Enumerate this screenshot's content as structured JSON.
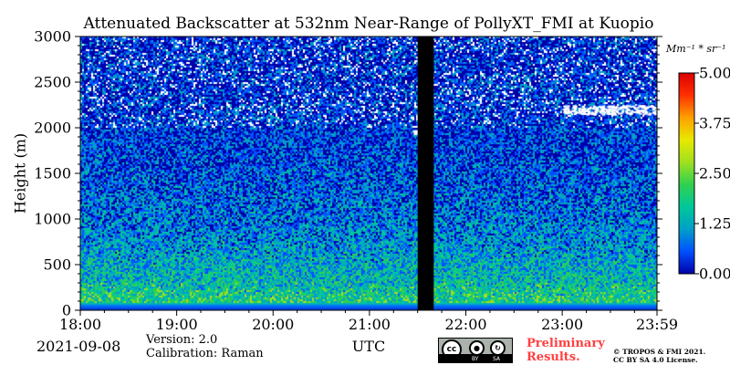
{
  "chart_data": {
    "type": "heatmap",
    "title": "Attenuated Backscatter at 532nm Near-Range of PollyXT_FMI at Kuopio",
    "xlabel": "UTC",
    "ylabel": "Height (m)",
    "x_ticks": [
      "18:00",
      "19:00",
      "20:00",
      "21:00",
      "22:00",
      "23:00",
      "23:59"
    ],
    "y_ticks": [
      "0",
      "500",
      "1000",
      "1500",
      "2000",
      "2500",
      "3000"
    ],
    "xlim": [
      "18:00",
      "23:59"
    ],
    "ylim": [
      0,
      3000
    ],
    "colorbar": {
      "unit": "Mm⁻¹ * sr⁻¹",
      "ticks": [
        "0.00",
        "1.25",
        "2.50",
        "3.75",
        "5.00"
      ],
      "range": [
        0,
        5
      ],
      "colormap": [
        "#0000aa",
        "#0050ff",
        "#00a0c8",
        "#00c89a",
        "#30d050",
        "#a0e020",
        "#e8e800",
        "#ffa000",
        "#ff3000",
        "#dd0000"
      ]
    },
    "no_data_gap": {
      "start": "21:30",
      "end": "21:40",
      "color": "#000000"
    },
    "features": [
      {
        "type": "near-surface layer",
        "height_m": [
          0,
          80
        ],
        "level": "low"
      },
      {
        "type": "aerosol gradient",
        "height_m": [
          80,
          1500
        ],
        "level": "moderate"
      },
      {
        "type": "cloud",
        "time": [
          "23:00",
          "23:59"
        ],
        "height_m": [
          2150,
          2250
        ],
        "level": "saturated"
      },
      {
        "type": "cloud",
        "time": [
          "21:27",
          "21:30"
        ],
        "height_m": [
          1940,
          1980
        ],
        "level": "saturated"
      }
    ]
  },
  "footer": {
    "date": "2021-09-08",
    "version": "Version: 2.0",
    "calibration": "Calibration: Raman",
    "preliminary": "Preliminary Results.",
    "copyright_line1": "© TROPOS & FMI 2021.",
    "copyright_line2": "CC BY SA 4.0 License.",
    "license_badge": {
      "label": "cc",
      "attribution": "BY",
      "sharealike": "SA"
    }
  }
}
